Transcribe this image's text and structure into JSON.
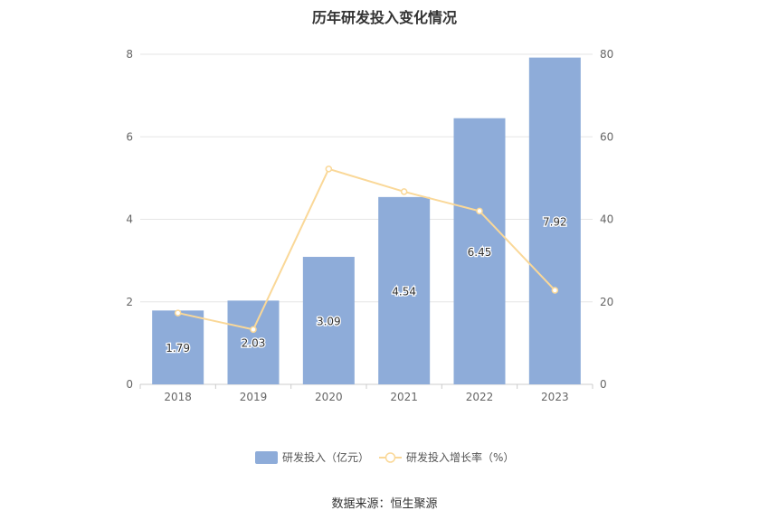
{
  "chart_data": {
    "type": "bar",
    "title": "历年研发投入变化情况",
    "categories": [
      "2018",
      "2019",
      "2020",
      "2021",
      "2022",
      "2023"
    ],
    "series": [
      {
        "name": "研发投入（亿元）",
        "type": "bar",
        "axis": "left",
        "values": [
          1.79,
          2.03,
          3.09,
          4.54,
          6.45,
          7.92
        ],
        "color": "#8eacd9"
      },
      {
        "name": "研发投入增长率（%）",
        "type": "line",
        "axis": "right",
        "values": [
          17.3,
          13.3,
          52.2,
          46.7,
          42.0,
          22.8
        ],
        "color": "#fad898"
      }
    ],
    "y_left": {
      "min": 0,
      "max": 8,
      "ticks": [
        "0",
        "2",
        "4",
        "6",
        "8"
      ]
    },
    "y_right": {
      "min": 0,
      "max": 80,
      "ticks": [
        "0",
        "20",
        "40",
        "60",
        "80"
      ]
    },
    "grid": true,
    "legend": "bottom-center",
    "source": "数据来源：恒生聚源"
  }
}
